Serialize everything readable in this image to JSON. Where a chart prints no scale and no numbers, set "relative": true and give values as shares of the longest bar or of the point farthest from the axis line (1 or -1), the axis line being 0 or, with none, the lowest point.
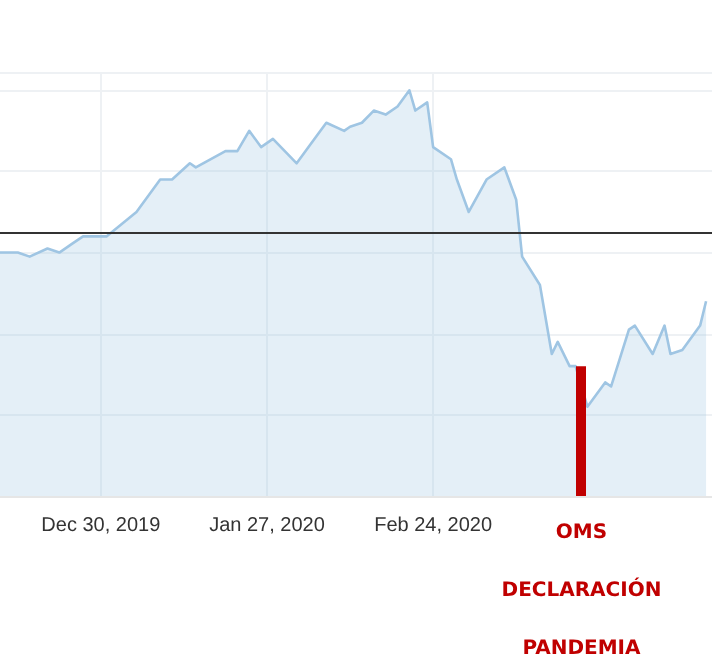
{
  "chart_data": {
    "type": "area",
    "relative": true,
    "grid": true,
    "marker": "none",
    "line_style": "solid",
    "x": [
      "2019-12-13",
      "2019-12-16",
      "2019-12-18",
      "2019-12-21",
      "2019-12-23",
      "2019-12-25",
      "2019-12-27",
      "2019-12-31",
      "2020-01-05",
      "2020-01-09",
      "2020-01-11",
      "2020-01-14",
      "2020-01-15",
      "2020-01-20",
      "2020-01-22",
      "2020-01-24",
      "2020-01-26",
      "2020-01-28",
      "2020-02-01",
      "2020-02-03",
      "2020-02-06",
      "2020-02-09",
      "2020-02-10",
      "2020-02-12",
      "2020-02-14",
      "2020-02-16",
      "2020-02-18",
      "2020-02-20",
      "2020-02-21",
      "2020-02-23",
      "2020-02-24",
      "2020-02-27",
      "2020-02-28",
      "2020-03-01",
      "2020-03-04",
      "2020-03-07",
      "2020-03-09",
      "2020-03-10",
      "2020-03-13",
      "2020-03-15",
      "2020-03-16",
      "2020-03-18",
      "2020-03-19",
      "2020-03-21",
      "2020-03-24",
      "2020-03-25",
      "2020-03-28",
      "2020-03-29",
      "2020-04-01",
      "2020-04-03",
      "2020-04-04",
      "2020-04-06",
      "2020-04-09",
      "2020-04-10"
    ],
    "series": [
      {
        "color": "#9fc5e3",
        "values": [
          0.6,
          0.6,
          0.59,
          0.61,
          0.6,
          0.62,
          0.64,
          0.64,
          0.7,
          0.78,
          0.78,
          0.82,
          0.81,
          0.85,
          0.85,
          0.9,
          0.86,
          0.88,
          0.82,
          0.86,
          0.92,
          0.9,
          0.91,
          0.92,
          0.95,
          0.94,
          0.96,
          1.0,
          0.95,
          0.97,
          0.86,
          0.83,
          0.78,
          0.7,
          0.78,
          0.81,
          0.73,
          0.59,
          0.52,
          0.35,
          0.38,
          0.32,
          0.32,
          0.22,
          0.28,
          0.27,
          0.41,
          0.42,
          0.35,
          0.42,
          0.35,
          0.36,
          0.42,
          0.48
        ]
      }
    ],
    "xlim": [
      "2019-12-13",
      "2020-04-11"
    ],
    "xticks": [
      {
        "value": "2019-12-30",
        "label": "Dec 30, 2019"
      },
      {
        "value": "2020-01-27",
        "label": "Jan 27, 2020"
      },
      {
        "value": "2020-02-24",
        "label": "Feb 24, 2020"
      }
    ],
    "ref_lines": [
      {
        "axis": "y",
        "value": 0.645,
        "color": "#333333"
      },
      {
        "axis": "x",
        "value": "2020-03-20",
        "label": "OMS\nDECLARACIÓN\nPANDEMIA",
        "color": "#c00000"
      }
    ]
  }
}
